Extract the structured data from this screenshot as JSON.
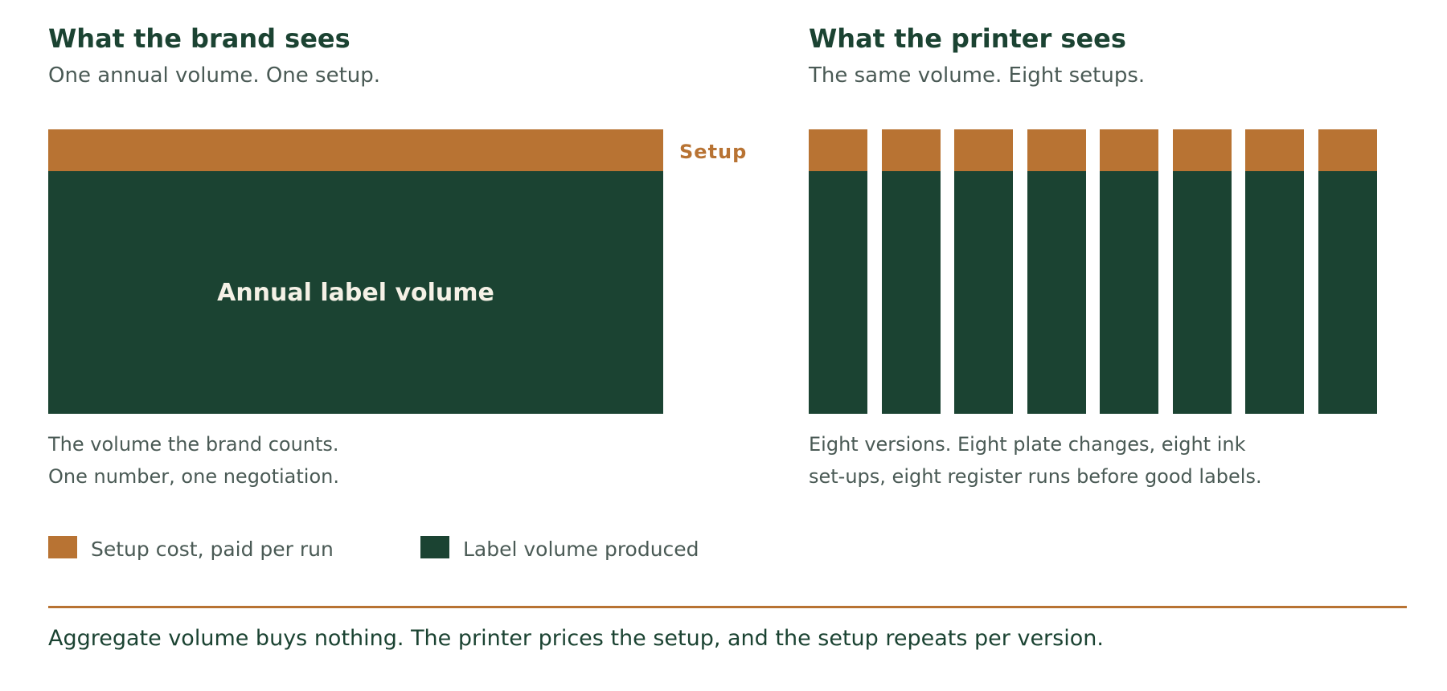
{
  "left_panel": {
    "title": "What the brand sees",
    "subtitle": "One annual volume. One setup.",
    "volume_label": "Annual label volume",
    "setup_callout": "Setup",
    "caption_lines": [
      "The volume the brand counts.",
      "One number, one negotiation."
    ],
    "setup_count": 1
  },
  "right_panel": {
    "title": "What the printer sees",
    "subtitle": "The same volume. Eight setups.",
    "caption_lines": [
      "Eight versions. Eight plate changes, eight ink",
      "set-ups, eight register runs before good labels."
    ],
    "setup_count": 8
  },
  "legend": [
    {
      "label": "Setup cost, paid per run",
      "color": "#b87333"
    },
    {
      "label": "Label volume produced",
      "color": "#1b4332"
    }
  ],
  "conclusion": "Aggregate volume buys nothing. The printer prices the setup, and the setup repeats per version.",
  "colors": {
    "setup": "#b87333",
    "volume": "#1b4332",
    "heading": "#1b4332",
    "body_text": "#4a5a55",
    "label_on_dark": "#f5f1e6"
  }
}
